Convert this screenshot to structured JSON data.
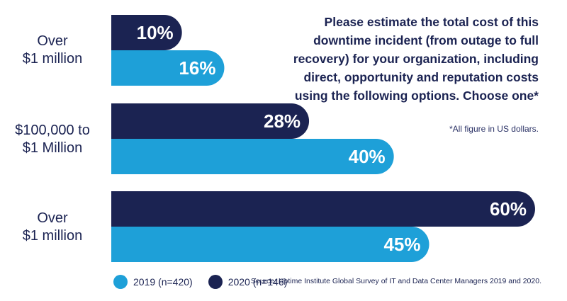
{
  "chart_data": {
    "type": "bar",
    "orientation": "horizontal",
    "categories": [
      [
        "Over",
        "$1 million"
      ],
      [
        "$100,000 to",
        "$1 Million"
      ],
      [
        "Over",
        "$1 million"
      ]
    ],
    "series": [
      {
        "name": "2020 (n=146)",
        "values": [
          10,
          28,
          60
        ],
        "labels": [
          "10%",
          "28%",
          "60%"
        ]
      },
      {
        "name": "2019 (n=420)",
        "values": [
          16,
          40,
          45
        ],
        "labels": [
          "16%",
          "40%",
          "45%"
        ]
      }
    ],
    "xlim": [
      0,
      60
    ],
    "grid": false,
    "legend_placement": "bottom-left"
  },
  "question": "Please estimate the total cost of this downtime incident (from outage to full recovery) for your organization, including direct, opportunity and reputation costs using the following options. Choose one*",
  "footnote": "*All figure in US dollars.",
  "legend": [
    {
      "label": "2019 (n=420)",
      "color": "#1ea0d8"
    },
    {
      "label": "2020 (n=146)",
      "color": "#1b2352"
    }
  ],
  "source": "Source: Uptime Institute Global Survey of IT and Data Center Managers 2019 and 2020.",
  "colors": {
    "navy": "#1b2352",
    "blue": "#1ea0d8",
    "text": "#1b2352"
  }
}
